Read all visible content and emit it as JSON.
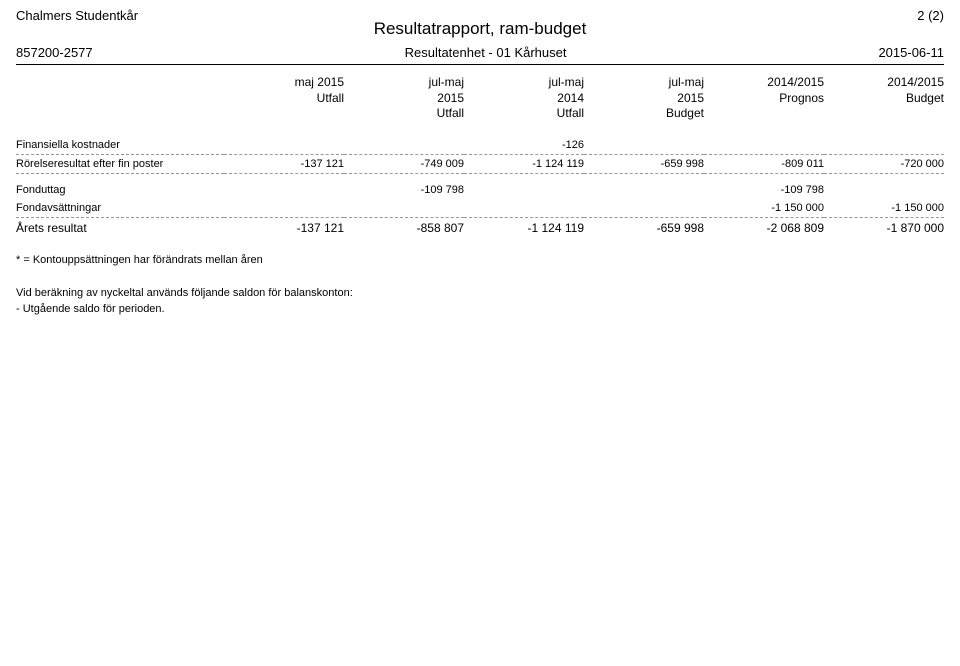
{
  "header": {
    "org_name": "Chalmers Studentkår",
    "page_indicator": "2 (2)",
    "title": "Resultatrapport, ram-budget",
    "org_number": "857200-2577",
    "unit": "Resultatenhet - 01 Kårhuset",
    "date": "2015-06-11"
  },
  "columns": [
    {
      "l1": "maj 2015",
      "l2": "Utfall",
      "l3": ""
    },
    {
      "l1": "jul-maj",
      "l2": "2015",
      "l3": "Utfall"
    },
    {
      "l1": "jul-maj",
      "l2": "2014",
      "l3": "Utfall"
    },
    {
      "l1": "jul-maj",
      "l2": "2015",
      "l3": "Budget"
    },
    {
      "l1": "2014/2015",
      "l2": "Prognos",
      "l3": ""
    },
    {
      "l1": "2014/2015",
      "l2": "Budget",
      "l3": ""
    }
  ],
  "rows": {
    "fin_kostnader": {
      "label": "Finansiella kostnader",
      "c1": "",
      "c2": "",
      "c3": "-126",
      "c4": "",
      "c5": "",
      "c6": ""
    },
    "rorelse": {
      "label": "Rörelseresultat efter fin poster",
      "c1": "-137 121",
      "c2": "-749 009",
      "c3": "-1 124 119",
      "c4": "-659 998",
      "c5": "-809 011",
      "c6": "-720 000"
    },
    "fonduttag": {
      "label": "Fonduttag",
      "c1": "",
      "c2": "-109 798",
      "c3": "",
      "c4": "",
      "c5": "-109 798",
      "c6": ""
    },
    "fondavsattningar": {
      "label": "Fondavsättningar",
      "c1": "",
      "c2": "",
      "c3": "",
      "c4": "",
      "c5": "-1 150 000",
      "c6": "-1 150 000"
    },
    "arets_resultat": {
      "label": "Årets resultat",
      "c1": "-137 121",
      "c2": "-858 807",
      "c3": "-1 124 119",
      "c4": "-659 998",
      "c5": "-2 068 809",
      "c6": "-1 870 000"
    }
  },
  "notes": {
    "n1": "* = Kontouppsättningen har förändrats mellan åren",
    "n2": "Vid beräkning av nyckeltal används följande saldon för balanskonton:",
    "n3": "- Utgående saldo för perioden."
  }
}
